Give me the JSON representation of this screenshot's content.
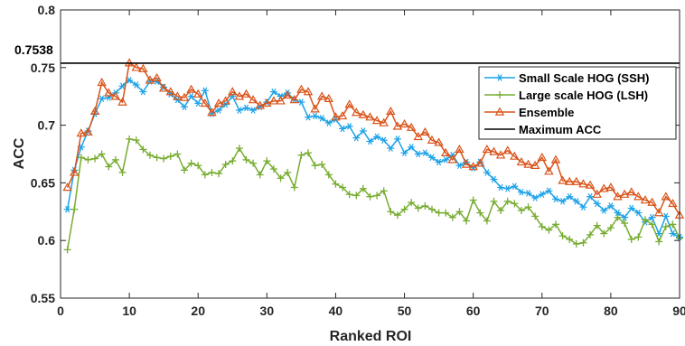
{
  "chart_data": {
    "type": "line",
    "title": "",
    "xlabel": "Ranked ROI",
    "ylabel": "ACC",
    "xlim": [
      0,
      90
    ],
    "ylim": [
      0.55,
      0.8
    ],
    "xticks": [
      0,
      10,
      20,
      30,
      40,
      50,
      60,
      70,
      80,
      90
    ],
    "yticks": [
      0.55,
      0.6,
      0.65,
      0.7,
      0.75,
      0.8
    ],
    "grid": false,
    "legend_position": "upper-right",
    "annotation": {
      "label": "0.7538",
      "value": 0.7538
    },
    "x": [
      1,
      2,
      3,
      4,
      5,
      6,
      7,
      8,
      9,
      10,
      11,
      12,
      13,
      14,
      15,
      16,
      17,
      18,
      19,
      20,
      21,
      22,
      23,
      24,
      25,
      26,
      27,
      28,
      29,
      30,
      31,
      32,
      33,
      34,
      35,
      36,
      37,
      38,
      39,
      40,
      41,
      42,
      43,
      44,
      45,
      46,
      47,
      48,
      49,
      50,
      51,
      52,
      53,
      54,
      55,
      56,
      57,
      58,
      59,
      60,
      61,
      62,
      63,
      64,
      65,
      66,
      67,
      68,
      69,
      70,
      71,
      72,
      73,
      74,
      75,
      76,
      77,
      78,
      79,
      80,
      81,
      82,
      83,
      84,
      85,
      86,
      87,
      88,
      89,
      90
    ],
    "series": [
      {
        "name": "Small Scale HOG (SSH)",
        "color": "#1da2e8",
        "marker": "asterisk",
        "values": [
          0.627,
          0.661,
          0.681,
          0.695,
          0.71,
          0.723,
          0.724,
          0.728,
          0.734,
          0.739,
          0.735,
          0.729,
          0.738,
          0.738,
          0.733,
          0.727,
          0.722,
          0.716,
          0.725,
          0.719,
          0.73,
          0.71,
          0.713,
          0.718,
          0.725,
          0.713,
          0.715,
          0.713,
          0.716,
          0.72,
          0.729,
          0.725,
          0.728,
          0.722,
          0.72,
          0.707,
          0.708,
          0.706,
          0.702,
          0.705,
          0.697,
          0.699,
          0.689,
          0.695,
          0.686,
          0.69,
          0.687,
          0.68,
          0.688,
          0.676,
          0.681,
          0.675,
          0.676,
          0.672,
          0.668,
          0.67,
          0.674,
          0.665,
          0.668,
          0.663,
          0.668,
          0.659,
          0.653,
          0.646,
          0.645,
          0.647,
          0.642,
          0.641,
          0.637,
          0.64,
          0.643,
          0.636,
          0.634,
          0.638,
          0.634,
          0.629,
          0.638,
          0.632,
          0.626,
          0.63,
          0.624,
          0.62,
          0.628,
          0.624,
          0.616,
          0.62,
          0.606,
          0.621,
          0.606,
          0.603
        ]
      },
      {
        "name": "Large scale HOG (LSH)",
        "color": "#77ac30",
        "marker": "plus",
        "values": [
          0.592,
          0.627,
          0.672,
          0.67,
          0.671,
          0.675,
          0.664,
          0.67,
          0.659,
          0.688,
          0.687,
          0.679,
          0.674,
          0.672,
          0.671,
          0.673,
          0.675,
          0.661,
          0.667,
          0.665,
          0.657,
          0.659,
          0.658,
          0.666,
          0.669,
          0.68,
          0.67,
          0.667,
          0.657,
          0.669,
          0.662,
          0.654,
          0.659,
          0.646,
          0.674,
          0.676,
          0.665,
          0.666,
          0.657,
          0.649,
          0.646,
          0.64,
          0.639,
          0.645,
          0.638,
          0.639,
          0.643,
          0.625,
          0.622,
          0.627,
          0.633,
          0.628,
          0.63,
          0.627,
          0.624,
          0.624,
          0.62,
          0.625,
          0.617,
          0.635,
          0.624,
          0.617,
          0.634,
          0.626,
          0.634,
          0.632,
          0.626,
          0.629,
          0.621,
          0.612,
          0.609,
          0.614,
          0.604,
          0.601,
          0.597,
          0.598,
          0.605,
          0.613,
          0.606,
          0.611,
          0.62,
          0.615,
          0.601,
          0.603,
          0.618,
          0.614,
          0.599,
          0.612,
          0.614,
          0.602
        ]
      },
      {
        "name": "Ensemble",
        "color": "#d95319",
        "marker": "triangle",
        "values": [
          0.646,
          0.659,
          0.693,
          0.694,
          0.712,
          0.737,
          0.728,
          0.725,
          0.72,
          0.754,
          0.75,
          0.749,
          0.739,
          0.741,
          0.732,
          0.729,
          0.725,
          0.724,
          0.731,
          0.727,
          0.719,
          0.711,
          0.719,
          0.721,
          0.729,
          0.725,
          0.727,
          0.722,
          0.717,
          0.719,
          0.721,
          0.721,
          0.726,
          0.722,
          0.731,
          0.729,
          0.714,
          0.725,
          0.723,
          0.707,
          0.708,
          0.718,
          0.711,
          0.709,
          0.707,
          0.704,
          0.702,
          0.712,
          0.699,
          0.701,
          0.698,
          0.69,
          0.694,
          0.687,
          0.685,
          0.676,
          0.67,
          0.679,
          0.666,
          0.664,
          0.667,
          0.679,
          0.677,
          0.674,
          0.678,
          0.673,
          0.668,
          0.666,
          0.665,
          0.672,
          0.66,
          0.67,
          0.652,
          0.651,
          0.651,
          0.649,
          0.648,
          0.64,
          0.645,
          0.646,
          0.638,
          0.64,
          0.642,
          0.638,
          0.635,
          0.633,
          0.624,
          0.638,
          0.632,
          0.622
        ]
      },
      {
        "name": "Maximum ACC",
        "color": "#000000",
        "marker": "none",
        "constant": 0.7538
      }
    ]
  }
}
